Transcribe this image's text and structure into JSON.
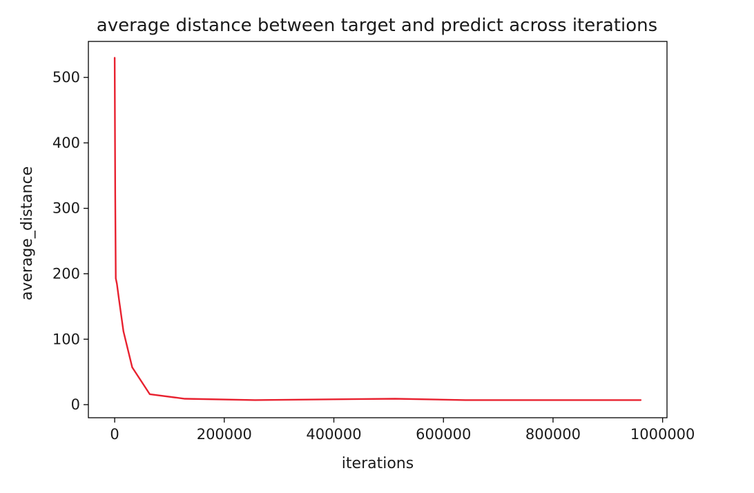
{
  "chart_data": {
    "type": "line",
    "title": "average distance between target and predict across iterations",
    "xlabel": "iterations",
    "ylabel": "average_distance",
    "xlim": [
      -48000,
      1008000
    ],
    "ylim": [
      -20,
      555
    ],
    "x_ticks": [
      0,
      200000,
      400000,
      600000,
      800000,
      1000000
    ],
    "x_tick_labels": [
      "0",
      "200000",
      "400000",
      "600000",
      "800000",
      "1000000"
    ],
    "y_ticks": [
      0,
      100,
      200,
      300,
      400,
      500
    ],
    "y_tick_labels": [
      "0",
      "100",
      "200",
      "300",
      "400",
      "500"
    ],
    "grid": false,
    "legend": "none",
    "series": [
      {
        "color": "#e8212f",
        "x": [
          0,
          1000,
          2000,
          4000,
          8000,
          16000,
          32000,
          64000,
          128000,
          256000,
          384000,
          512000,
          640000,
          768000,
          896000,
          960000
        ],
        "y": [
          530,
          320,
          193,
          185,
          160,
          112,
          57,
          16,
          9,
          7,
          8,
          9,
          7,
          7,
          7,
          7
        ]
      }
    ]
  }
}
